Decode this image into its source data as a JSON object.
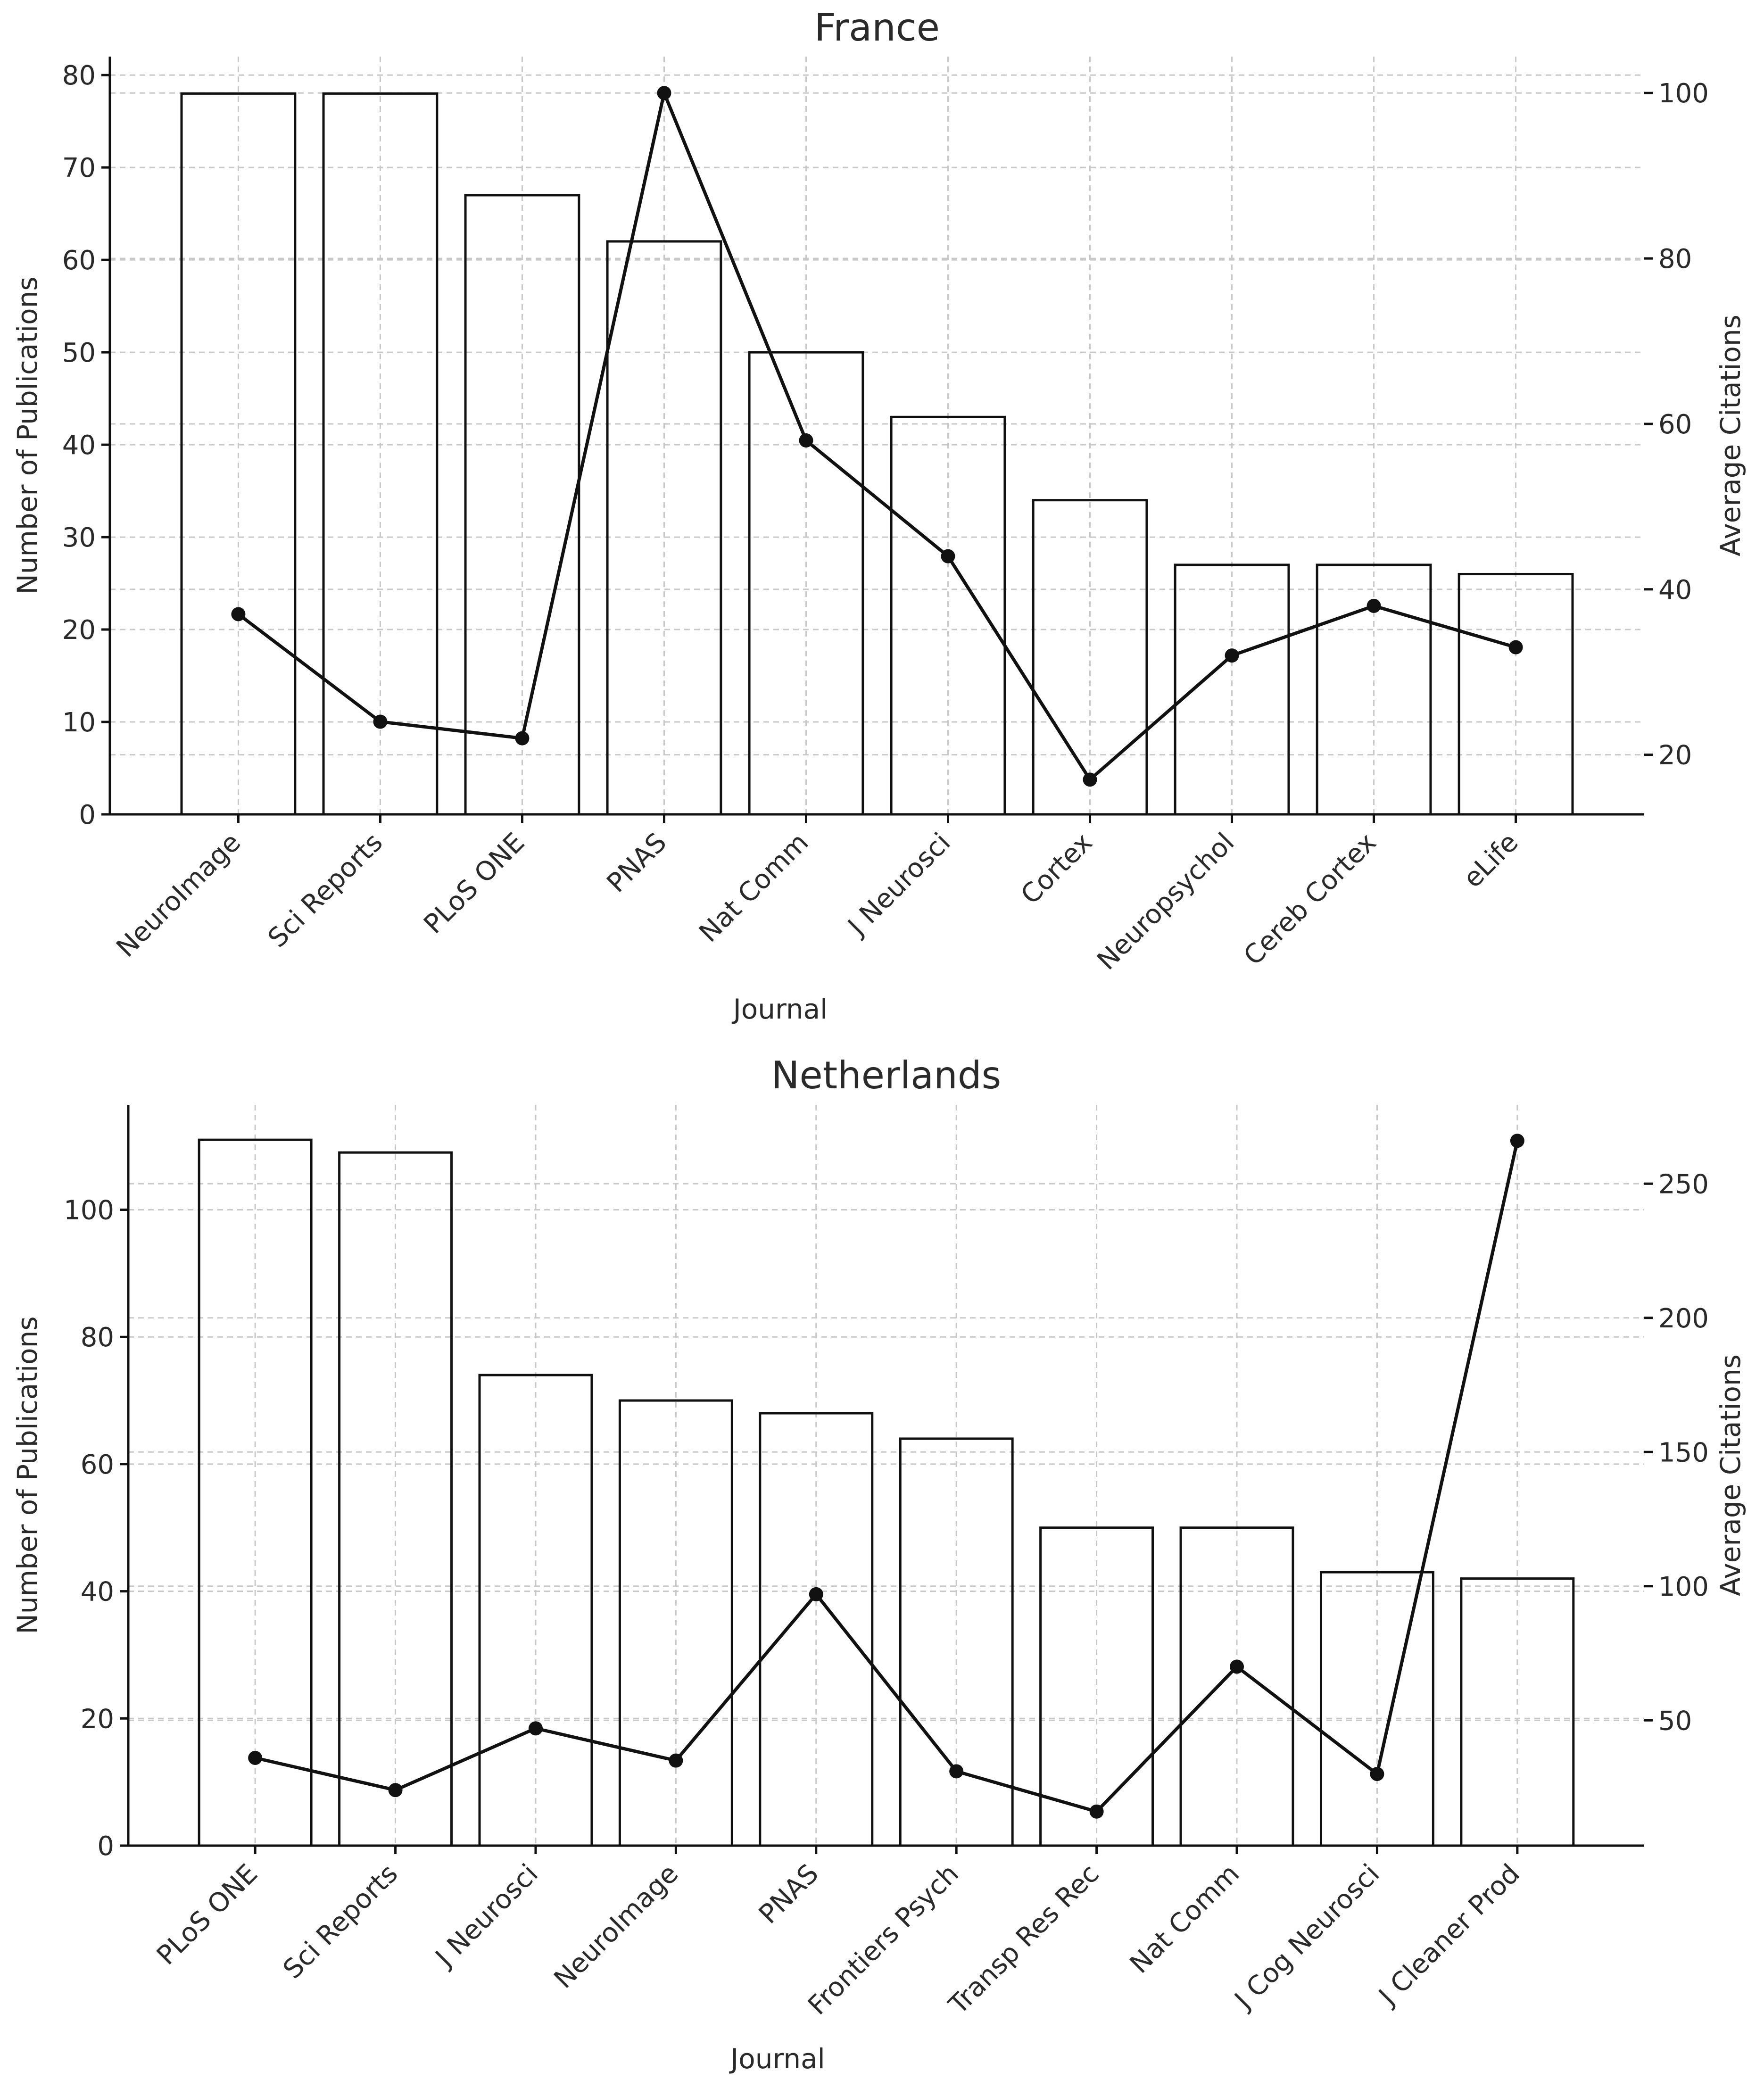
{
  "chart_data": [
    {
      "type": "bar",
      "title": "France",
      "xlabel": "Journal",
      "ylabel": "Number of Publications",
      "y2label": "Average Citations",
      "categories": [
        "NeuroImage",
        "Sci Reports",
        "PLoS ONE",
        "PNAS",
        "Nat Comm",
        "J Neurosci",
        "Cortex",
        "Neuropsychol",
        "Cereb Cortex",
        "eLife"
      ],
      "series": [
        {
          "name": "Number of Publications",
          "kind": "bar",
          "axis": "left",
          "values": [
            78,
            78,
            67,
            62,
            50,
            43,
            34,
            27,
            27,
            26
          ]
        },
        {
          "name": "Average Citations",
          "kind": "line",
          "axis": "right",
          "values": [
            37,
            24,
            22,
            100,
            58,
            44,
            17,
            32,
            38,
            33
          ]
        }
      ],
      "ylim": [
        0,
        82
      ],
      "yticks": [
        0,
        10,
        20,
        30,
        40,
        50,
        60,
        70,
        80
      ],
      "y2lim": [
        12.8,
        104.4
      ],
      "y2ticks": [
        20,
        40,
        60,
        80,
        100
      ],
      "grid": true
    },
    {
      "type": "bar",
      "title": "Netherlands",
      "xlabel": "Journal",
      "ylabel": "Number of Publications",
      "y2label": "Average Citations",
      "categories": [
        "PLoS ONE",
        "Sci Reports",
        "J Neurosci",
        "NeuroImage",
        "PNAS",
        "Frontiers Psych",
        "Transp Res Rec",
        "Nat Comm",
        "J Cog Neurosci",
        "J Cleaner Prod"
      ],
      "series": [
        {
          "name": "Number of Publications",
          "kind": "bar",
          "axis": "left",
          "values": [
            111,
            109,
            74,
            70,
            68,
            64,
            50,
            50,
            43,
            42
          ]
        },
        {
          "name": "Average Citations",
          "kind": "line",
          "axis": "right",
          "values": [
            36,
            24,
            47,
            35,
            97,
            31,
            16,
            70,
            30,
            266
          ]
        }
      ],
      "ylim": [
        0,
        116.5
      ],
      "yticks": [
        0,
        20,
        40,
        60,
        80,
        100
      ],
      "y2lim": [
        3.3,
        279.4
      ],
      "y2ticks": [
        50,
        100,
        150,
        200,
        250
      ],
      "grid": true
    }
  ]
}
